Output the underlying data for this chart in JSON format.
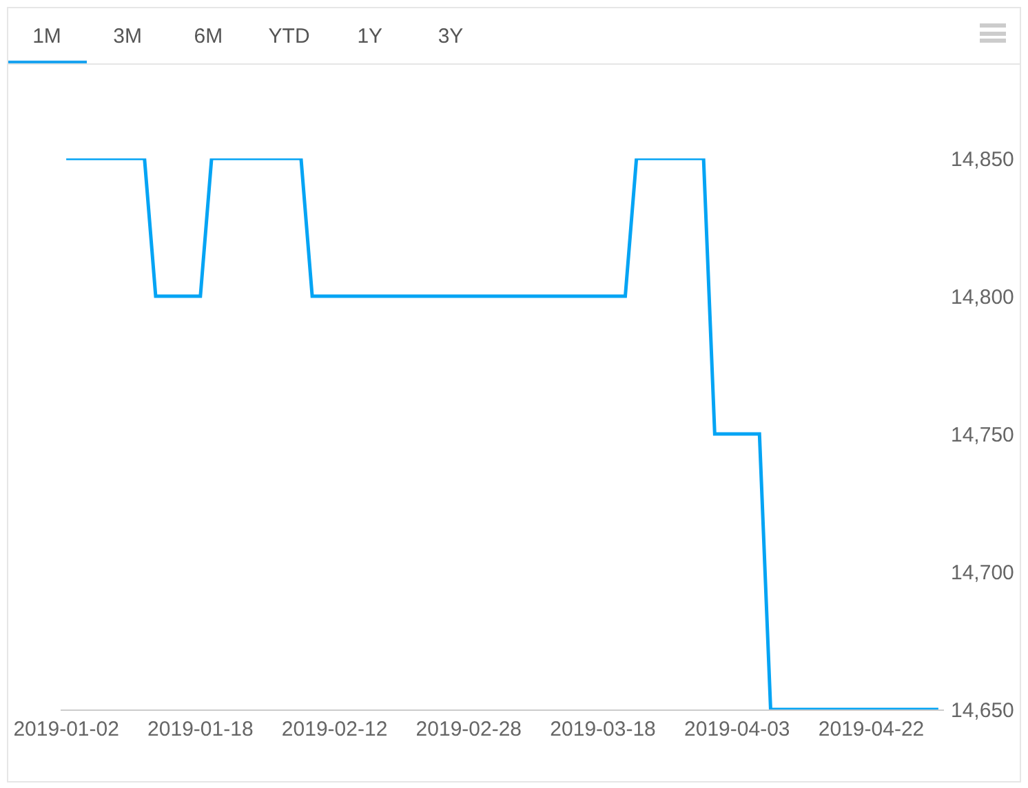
{
  "chart_data": {
    "type": "line",
    "categories": [
      "2019-01-02",
      null,
      null,
      null,
      null,
      null,
      null,
      null,
      null,
      null,
      null,
      null,
      "2019-01-18",
      null,
      null,
      null,
      null,
      null,
      null,
      null,
      null,
      null,
      null,
      null,
      "2019-02-12",
      null,
      null,
      null,
      null,
      null,
      null,
      null,
      null,
      null,
      null,
      null,
      "2019-02-28",
      null,
      null,
      null,
      null,
      null,
      null,
      null,
      null,
      null,
      null,
      null,
      "2019-03-18",
      null,
      null,
      null,
      null,
      null,
      null,
      null,
      null,
      null,
      null,
      null,
      "2019-04-03",
      null,
      null,
      null,
      null,
      null,
      null,
      null,
      null,
      null,
      null,
      null,
      "2019-04-22",
      null,
      null,
      null,
      null,
      null,
      null
    ],
    "values": [
      14850,
      14850,
      14850,
      14850,
      14850,
      14850,
      14850,
      14850,
      14800,
      14800,
      14800,
      14800,
      14800,
      14850,
      14850,
      14850,
      14850,
      14850,
      14850,
      14850,
      14850,
      14850,
      14800,
      14800,
      14800,
      14800,
      14800,
      14800,
      14800,
      14800,
      14800,
      14800,
      14800,
      14800,
      14800,
      14800,
      14800,
      14800,
      14800,
      14800,
      14800,
      14800,
      14800,
      14800,
      14800,
      14800,
      14800,
      14800,
      14800,
      14800,
      14800,
      14850,
      14850,
      14850,
      14850,
      14850,
      14850,
      14850,
      14750,
      14750,
      14750,
      14750,
      14750,
      14650,
      14650,
      14650,
      14650,
      14650,
      14650,
      14650,
      14650,
      14650,
      14650,
      14650,
      14650,
      14650,
      14650,
      14650,
      14650
    ],
    "color": "#05a4f4",
    "line_style": "solid",
    "ylim": [
      14650,
      14850
    ],
    "yticks": [
      {
        "value": 14650,
        "label": "14,650"
      },
      {
        "value": 14700,
        "label": "14,700"
      },
      {
        "value": 14750,
        "label": "14,750"
      },
      {
        "value": 14800,
        "label": "14,800"
      },
      {
        "value": 14850,
        "label": "14,850"
      }
    ],
    "annotations": [
      "1M",
      "3M",
      "6M",
      "YTD",
      "1Y",
      "3Y"
    ]
  }
}
